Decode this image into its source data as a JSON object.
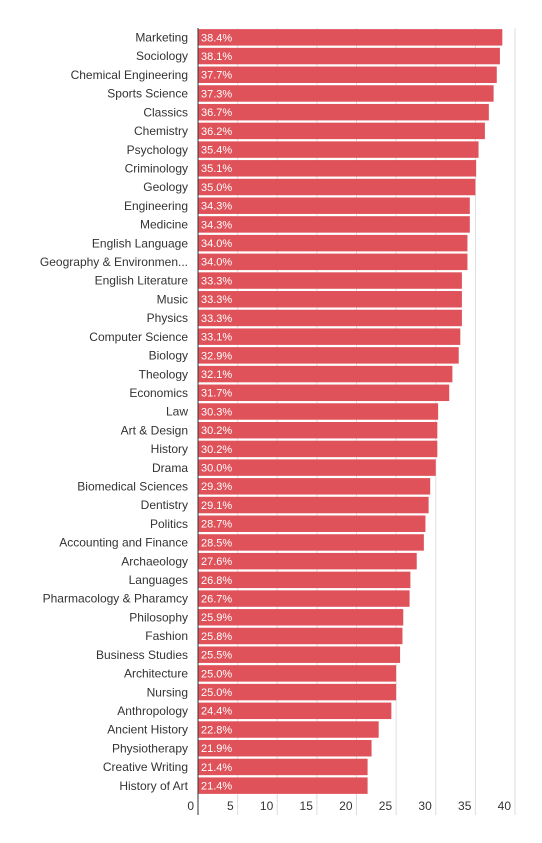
{
  "chart_data": {
    "type": "hbar",
    "categories": [
      "Marketing",
      "Sociology",
      "Chemical Engineering",
      "Sports Science",
      "Classics",
      "Chemistry",
      "Psychology",
      "Criminology",
      "Geology",
      "Engineering",
      "Medicine",
      "English Language",
      "Geography & Environmen...",
      "English Literature",
      "Music",
      "Physics",
      "Computer Science",
      "Biology",
      "Theology",
      "Economics",
      "Law",
      "Art & Design",
      "History",
      "Drama",
      "Biomedical Sciences",
      "Dentistry",
      "Politics",
      "Accounting and Finance",
      "Archaeology",
      "Languages",
      "Pharmacology & Pharamcy",
      "Philosophy",
      "Fashion",
      "Business Studies",
      "Architecture",
      "Nursing",
      "Anthropology",
      "Ancient History",
      "Physiotherapy",
      "Creative Writing",
      "History of Art"
    ],
    "values": [
      38.4,
      38.1,
      37.7,
      37.3,
      36.7,
      36.2,
      35.4,
      35.1,
      35.0,
      34.3,
      34.3,
      34.0,
      34.0,
      33.3,
      33.3,
      33.3,
      33.1,
      32.9,
      32.1,
      31.7,
      30.3,
      30.2,
      30.2,
      30.0,
      29.3,
      29.1,
      28.7,
      28.5,
      27.6,
      26.8,
      26.7,
      25.9,
      25.8,
      25.5,
      25.0,
      25.0,
      24.4,
      22.8,
      21.9,
      21.4,
      21.4
    ],
    "value_labels": [
      "38.4%",
      "38.1%",
      "37.7%",
      "37.3%",
      "36.7%",
      "36.2%",
      "35.4%",
      "35.1%",
      "35.0%",
      "34.3%",
      "34.3%",
      "34.0%",
      "34.0%",
      "33.3%",
      "33.3%",
      "33.3%",
      "33.1%",
      "32.9%",
      "32.1%",
      "31.7%",
      "30.3%",
      "30.2%",
      "30.2%",
      "30.0%",
      "29.3%",
      "29.1%",
      "28.7%",
      "28.5%",
      "27.6%",
      "26.8%",
      "26.7%",
      "25.9%",
      "25.8%",
      "25.5%",
      "25.0%",
      "25.0%",
      "24.4%",
      "22.8%",
      "21.9%",
      "21.4%",
      "21.4%"
    ],
    "color": "#e0525a",
    "xlim": [
      0,
      40
    ],
    "xticks": [
      0,
      5,
      10,
      15,
      20,
      25,
      30,
      35,
      40
    ],
    "grid": true
  }
}
